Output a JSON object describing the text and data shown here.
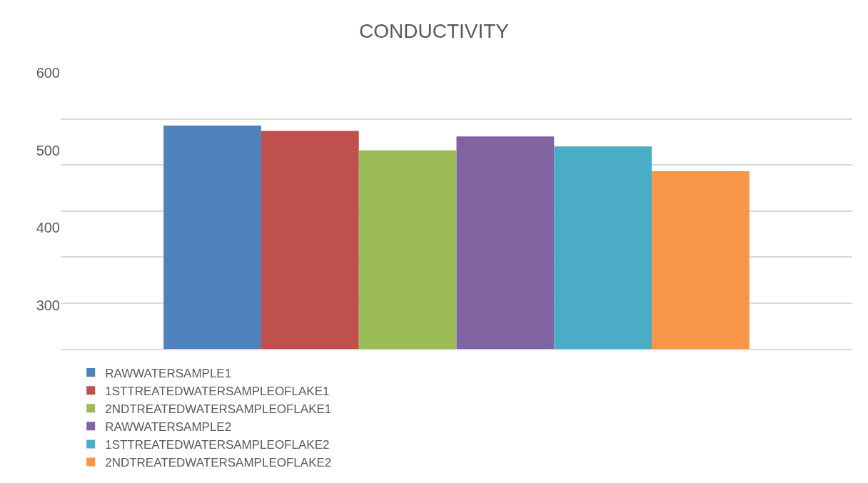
{
  "chart_data": {
    "type": "bar",
    "title": "CONDUCTIVITY",
    "categories": [
      null
    ],
    "series": [
      {
        "name": "RAWWATERSAMPLE1",
        "color": "#4f81bd",
        "values": [
          532
        ]
      },
      {
        "name": "1STTREATEDWATERSAMPLEOFLAKE1",
        "color": "#c0504d",
        "values": [
          525
        ]
      },
      {
        "name": "2NDTREATEDWATERSAMPLEOFLAKE1",
        "color": "#9bbb59",
        "values": [
          500
        ]
      },
      {
        "name": "RAWWATERSAMPLE2",
        "color": "#8064a2",
        "values": [
          518
        ]
      },
      {
        "name": "1STTREATEDWATERSAMPLEOFLAKE2",
        "color": "#4bacc6",
        "values": [
          505
        ]
      },
      {
        "name": "2NDTREATEDWATERSAMPLEOFLAKE2",
        "color": "#f79646",
        "values": [
          473
        ]
      }
    ],
    "ylim": [
      244,
      600
    ],
    "yticks": [
      300,
      400,
      500,
      600,
      {
        "value": 540.6,
        "label": null
      },
      {
        "value": 481.2,
        "label": null
      },
      {
        "value": 421.8,
        "label": null
      },
      {
        "value": 362.4,
        "label": null
      },
      {
        "value": 303,
        "label": null
      }
    ],
    "grid": "y",
    "legend": "bottom"
  }
}
